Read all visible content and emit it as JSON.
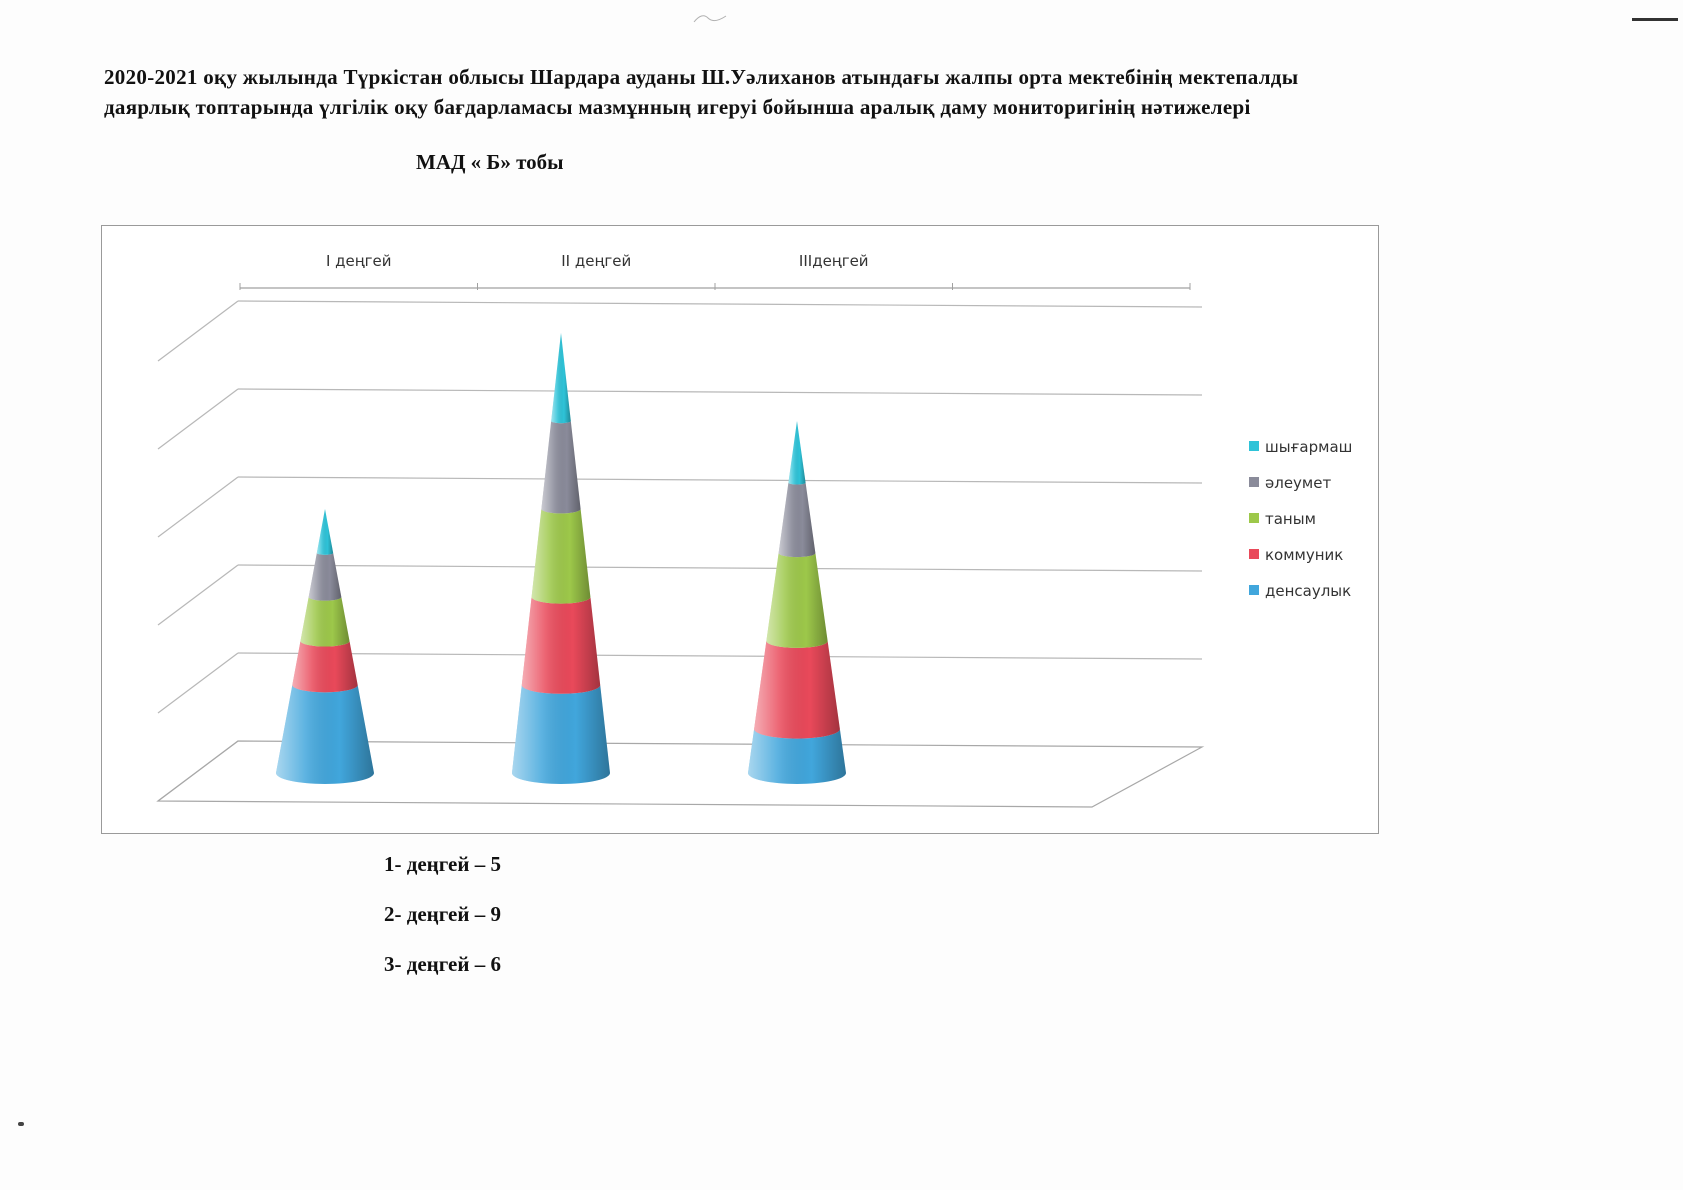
{
  "document": {
    "title_line1": "2020-2021 оқу жылында Түркістан облысы Шардара ауданы Ш.Уәлиханов атындағы жалпы орта мектебінің мектепалды",
    "title_line2": "даярлық топтарында үлгілік оқу бағдарламасы мазмұнның игеруі бойынша аралық даму мониторигінің нәтижелері",
    "subtitle": "МАД « Б» тобы"
  },
  "chart_data": {
    "type": "bar",
    "shape": "cone",
    "categories": [
      "I деңгей",
      "II деңгей",
      "IIIдеңгей"
    ],
    "series": [
      {
        "name": "денсаулык",
        "color": "#41a6dc",
        "values": [
          1,
          1,
          0.5
        ]
      },
      {
        "name": "коммуник",
        "color": "#e9495a",
        "values": [
          0.5,
          1,
          1
        ]
      },
      {
        "name": "таным",
        "color": "#9dc84a",
        "values": [
          0.5,
          1,
          1
        ]
      },
      {
        "name": "әлеумет",
        "color": "#8a8b9a",
        "values": [
          0.5,
          1,
          0.8
        ]
      },
      {
        "name": "шығармаш",
        "color": "#2ec3d8",
        "values": [
          0.5,
          1,
          0.7
        ]
      }
    ],
    "ylim": [
      0,
      5
    ],
    "grid": true,
    "legend_position": "right"
  },
  "notes": [
    {
      "label": "1-  деңгей – 5"
    },
    {
      "label": "2-  деңгей – 9"
    },
    {
      "label": "3-  деңгей – 6"
    }
  ]
}
